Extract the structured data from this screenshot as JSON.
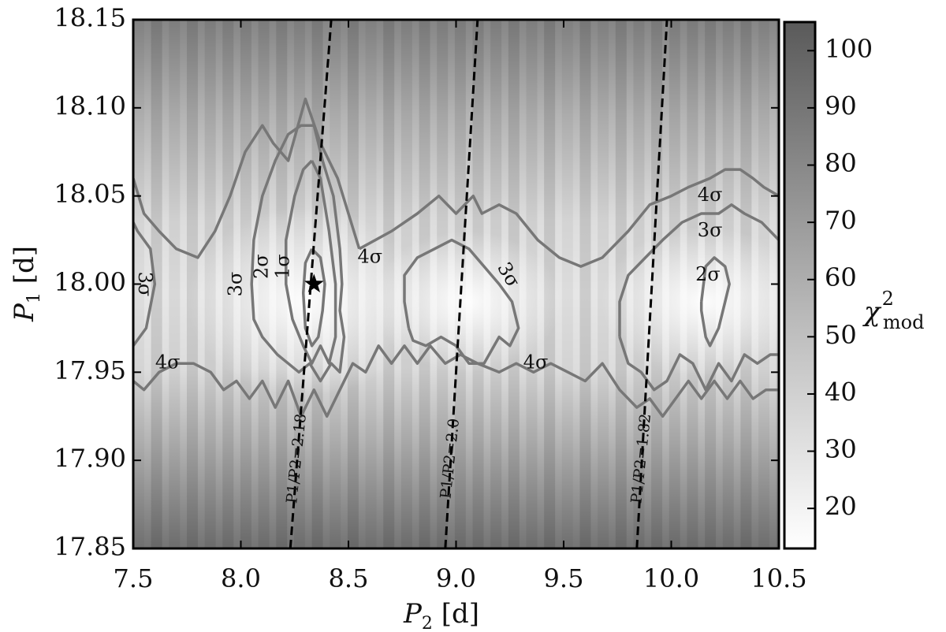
{
  "chart_data": {
    "type": "heatmap",
    "xlabel": {
      "symbol": "P",
      "sub": "2",
      "unit": " [d]"
    },
    "ylabel": {
      "symbol": "P",
      "sub": "1",
      "unit": " [d]"
    },
    "xlim": [
      7.5,
      10.5
    ],
    "ylim": [
      17.85,
      18.15
    ],
    "x_ticks": [
      "7.5",
      "8.0",
      "8.5",
      "9.0",
      "9.5",
      "10.0",
      "10.5"
    ],
    "y_ticks": [
      "17.85",
      "17.90",
      "17.95",
      "18.00",
      "18.05",
      "18.10",
      "18.15"
    ],
    "colorbar": {
      "label": {
        "symbol": "χ",
        "sup": "2",
        "sub": "mod"
      },
      "range": [
        13,
        105
      ],
      "ticks": [
        "20",
        "30",
        "40",
        "50",
        "60",
        "70",
        "80",
        "90",
        "100"
      ],
      "colormap": "gray-reversed",
      "low_color": "#ffffff",
      "high_color": "#5a5a5a"
    },
    "best_fit": {
      "x": 8.34,
      "y": 18.0,
      "marker": "star"
    },
    "ratio_lines": [
      {
        "label": "P1/P2=2.18",
        "points": [
          [
            8.23,
            17.85
          ],
          [
            8.42,
            18.15
          ]
        ]
      },
      {
        "label": "P1/P2=2.0",
        "points": [
          [
            8.95,
            17.85
          ],
          [
            9.1,
            18.15
          ]
        ]
      },
      {
        "label": "P1/P2=1.82",
        "points": [
          [
            9.84,
            17.85
          ],
          [
            9.98,
            18.15
          ]
        ]
      }
    ],
    "contours": [
      {
        "level": "1σ",
        "points": [
          [
            8.33,
            18.02
          ],
          [
            8.37,
            18.015
          ],
          [
            8.39,
            18.0
          ],
          [
            8.38,
            17.985
          ],
          [
            8.36,
            17.97
          ],
          [
            8.33,
            17.965
          ],
          [
            8.3,
            17.975
          ],
          [
            8.29,
            17.995
          ],
          [
            8.3,
            18.012
          ],
          [
            8.33,
            18.02
          ]
        ]
      },
      {
        "level": "2σ",
        "points": [
          [
            8.33,
            18.07
          ],
          [
            8.37,
            18.06
          ],
          [
            8.41,
            18.03
          ],
          [
            8.44,
            18.0
          ],
          [
            8.44,
            17.97
          ],
          [
            8.41,
            17.955
          ],
          [
            8.37,
            17.965
          ],
          [
            8.33,
            17.955
          ],
          [
            8.29,
            17.965
          ],
          [
            8.24,
            17.98
          ],
          [
            8.21,
            18.0
          ],
          [
            8.21,
            18.025
          ],
          [
            8.25,
            18.05
          ],
          [
            8.29,
            18.065
          ],
          [
            8.33,
            18.07
          ]
        ]
      },
      {
        "level": "3σ",
        "points": [
          [
            8.34,
            18.09
          ],
          [
            8.38,
            18.07
          ],
          [
            8.43,
            18.05
          ],
          [
            8.46,
            18.02
          ],
          [
            8.47,
            18.0
          ],
          [
            8.46,
            17.985
          ],
          [
            8.48,
            17.97
          ],
          [
            8.46,
            17.95
          ],
          [
            8.42,
            17.955
          ],
          [
            8.37,
            17.945
          ],
          [
            8.32,
            17.955
          ],
          [
            8.27,
            17.95
          ],
          [
            8.22,
            17.955
          ],
          [
            8.17,
            17.96
          ],
          [
            8.1,
            17.97
          ],
          [
            8.06,
            17.98
          ],
          [
            8.05,
            18.0
          ],
          [
            8.06,
            18.025
          ],
          [
            8.1,
            18.05
          ],
          [
            8.16,
            18.07
          ],
          [
            8.22,
            18.085
          ],
          [
            8.28,
            18.09
          ],
          [
            8.34,
            18.09
          ]
        ]
      },
      {
        "level": "4σ",
        "points": [
          [
            7.5,
            18.06
          ],
          [
            7.55,
            18.04
          ],
          [
            7.62,
            18.03
          ],
          [
            7.7,
            18.02
          ],
          [
            7.8,
            18.015
          ],
          [
            7.88,
            18.03
          ],
          [
            7.95,
            18.05
          ],
          [
            8.02,
            18.075
          ],
          [
            8.1,
            18.09
          ],
          [
            8.15,
            18.08
          ],
          [
            8.22,
            18.07
          ],
          [
            8.3,
            18.105
          ],
          [
            8.37,
            18.08
          ],
          [
            8.45,
            18.06
          ],
          [
            8.5,
            18.04
          ],
          [
            8.55,
            18.02
          ]
        ]
      },
      {
        "level": "4σ",
        "points": [
          [
            8.55,
            18.02
          ],
          [
            8.7,
            18.03
          ],
          [
            8.82,
            18.04
          ],
          [
            8.92,
            18.05
          ],
          [
            9.0,
            18.04
          ],
          [
            9.08,
            18.05
          ],
          [
            9.12,
            18.04
          ],
          [
            9.2,
            18.045
          ],
          [
            9.28,
            18.04
          ],
          [
            9.38,
            18.025
          ],
          [
            9.48,
            18.015
          ],
          [
            9.58,
            18.01
          ],
          [
            9.68,
            18.015
          ],
          [
            9.8,
            18.03
          ],
          [
            9.9,
            18.045
          ],
          [
            10.0,
            18.05
          ],
          [
            10.08,
            18.055
          ],
          [
            10.18,
            18.06
          ],
          [
            10.25,
            18.065
          ],
          [
            10.32,
            18.065
          ],
          [
            10.38,
            18.06
          ],
          [
            10.43,
            18.055
          ],
          [
            10.5,
            18.05
          ]
        ]
      },
      {
        "level": "4σ",
        "points": [
          [
            7.5,
            17.945
          ],
          [
            7.55,
            17.94
          ],
          [
            7.62,
            17.95
          ],
          [
            7.7,
            17.955
          ],
          [
            7.78,
            17.955
          ],
          [
            7.86,
            17.95
          ],
          [
            7.92,
            17.94
          ],
          [
            7.98,
            17.945
          ],
          [
            8.04,
            17.935
          ],
          [
            8.1,
            17.945
          ],
          [
            8.16,
            17.93
          ],
          [
            8.22,
            17.945
          ],
          [
            8.28,
            17.925
          ],
          [
            8.34,
            17.94
          ],
          [
            8.4,
            17.925
          ],
          [
            8.46,
            17.94
          ],
          [
            8.52,
            17.955
          ],
          [
            8.58,
            17.95
          ],
          [
            8.64,
            17.965
          ],
          [
            8.7,
            17.955
          ],
          [
            8.76,
            17.965
          ],
          [
            8.82,
            17.955
          ],
          [
            8.88,
            17.965
          ],
          [
            8.95,
            17.955
          ],
          [
            9.02,
            17.96
          ],
          [
            9.1,
            17.955
          ],
          [
            9.2,
            17.95
          ],
          [
            9.28,
            17.955
          ],
          [
            9.36,
            17.95
          ],
          [
            9.44,
            17.955
          ],
          [
            9.52,
            17.95
          ],
          [
            9.6,
            17.945
          ],
          [
            9.68,
            17.955
          ],
          [
            9.76,
            17.94
          ],
          [
            9.84,
            17.93
          ],
          [
            9.9,
            17.935
          ],
          [
            9.96,
            17.925
          ],
          [
            10.02,
            17.935
          ],
          [
            10.08,
            17.945
          ],
          [
            10.14,
            17.935
          ],
          [
            10.2,
            17.945
          ],
          [
            10.26,
            17.935
          ],
          [
            10.32,
            17.945
          ],
          [
            10.38,
            17.935
          ],
          [
            10.44,
            17.94
          ],
          [
            10.5,
            17.94
          ]
        ]
      },
      {
        "level": "3σ",
        "points": [
          [
            8.78,
            17.975
          ],
          [
            8.76,
            17.99
          ],
          [
            8.76,
            18.005
          ],
          [
            8.82,
            18.015
          ],
          [
            8.9,
            18.02
          ],
          [
            8.98,
            18.025
          ],
          [
            9.06,
            18.02
          ],
          [
            9.13,
            18.01
          ],
          [
            9.2,
            18.0
          ],
          [
            9.26,
            17.99
          ],
          [
            9.29,
            17.975
          ],
          [
            9.25,
            17.965
          ],
          [
            9.2,
            17.97
          ],
          [
            9.13,
            17.955
          ],
          [
            9.06,
            17.955
          ],
          [
            9.0,
            17.965
          ],
          [
            8.93,
            17.97
          ],
          [
            8.86,
            17.965
          ],
          [
            8.8,
            17.968
          ],
          [
            8.78,
            17.975
          ]
        ]
      },
      {
        "level": "3σ",
        "points": [
          [
            7.5,
            17.965
          ],
          [
            7.56,
            17.975
          ],
          [
            7.6,
            18.0
          ],
          [
            7.58,
            18.02
          ],
          [
            7.52,
            18.03
          ],
          [
            7.5,
            18.035
          ]
        ]
      },
      {
        "level": "3σ",
        "points": [
          [
            9.76,
            17.97
          ],
          [
            9.76,
            17.99
          ],
          [
            9.8,
            18.005
          ],
          [
            9.88,
            18.015
          ],
          [
            9.96,
            18.025
          ],
          [
            10.05,
            18.035
          ],
          [
            10.14,
            18.04
          ],
          [
            10.22,
            18.04
          ],
          [
            10.28,
            18.045
          ],
          [
            10.34,
            18.04
          ],
          [
            10.42,
            18.035
          ],
          [
            10.5,
            18.025
          ]
        ]
      },
      {
        "level": "3σ",
        "points": [
          [
            9.76,
            17.97
          ],
          [
            9.8,
            17.955
          ],
          [
            9.86,
            17.95
          ],
          [
            9.92,
            17.94
          ],
          [
            9.98,
            17.945
          ],
          [
            10.04,
            17.96
          ],
          [
            10.1,
            17.955
          ],
          [
            10.16,
            17.94
          ],
          [
            10.22,
            17.955
          ],
          [
            10.28,
            17.945
          ],
          [
            10.34,
            17.96
          ],
          [
            10.4,
            17.955
          ],
          [
            10.46,
            17.96
          ],
          [
            10.5,
            17.96
          ]
        ]
      },
      {
        "level": "2σ",
        "points": [
          [
            10.14,
            17.99
          ],
          [
            10.14,
            17.985
          ],
          [
            10.16,
            17.97
          ],
          [
            10.18,
            17.965
          ],
          [
            10.22,
            17.975
          ],
          [
            10.25,
            17.99
          ],
          [
            10.27,
            18.0
          ],
          [
            10.25,
            18.01
          ],
          [
            10.2,
            18.015
          ],
          [
            10.16,
            18.01
          ],
          [
            10.14,
            17.99
          ]
        ]
      }
    ],
    "contour_labels": [
      {
        "text": "1σ",
        "x": 8.2,
        "y": 18.01,
        "rotate": -90
      },
      {
        "text": "2σ",
        "x": 8.1,
        "y": 18.01,
        "rotate": -90
      },
      {
        "text": "3σ",
        "x": 7.98,
        "y": 18.0,
        "rotate": -90
      },
      {
        "text": "3σ",
        "x": 7.55,
        "y": 18.0,
        "rotate": 90
      },
      {
        "text": "4σ",
        "x": 7.66,
        "y": 17.955,
        "rotate": 0
      },
      {
        "text": "4σ",
        "x": 8.6,
        "y": 18.015,
        "rotate": 0
      },
      {
        "text": "3σ",
        "x": 9.24,
        "y": 18.005,
        "rotate": 60
      },
      {
        "text": "4σ",
        "x": 9.37,
        "y": 17.955,
        "rotate": 0
      },
      {
        "text": "4σ",
        "x": 10.18,
        "y": 18.05,
        "rotate": 0
      },
      {
        "text": "3σ",
        "x": 10.18,
        "y": 18.03,
        "rotate": 0
      },
      {
        "text": "2σ",
        "x": 10.17,
        "y": 18.005,
        "rotate": 0
      }
    ]
  }
}
